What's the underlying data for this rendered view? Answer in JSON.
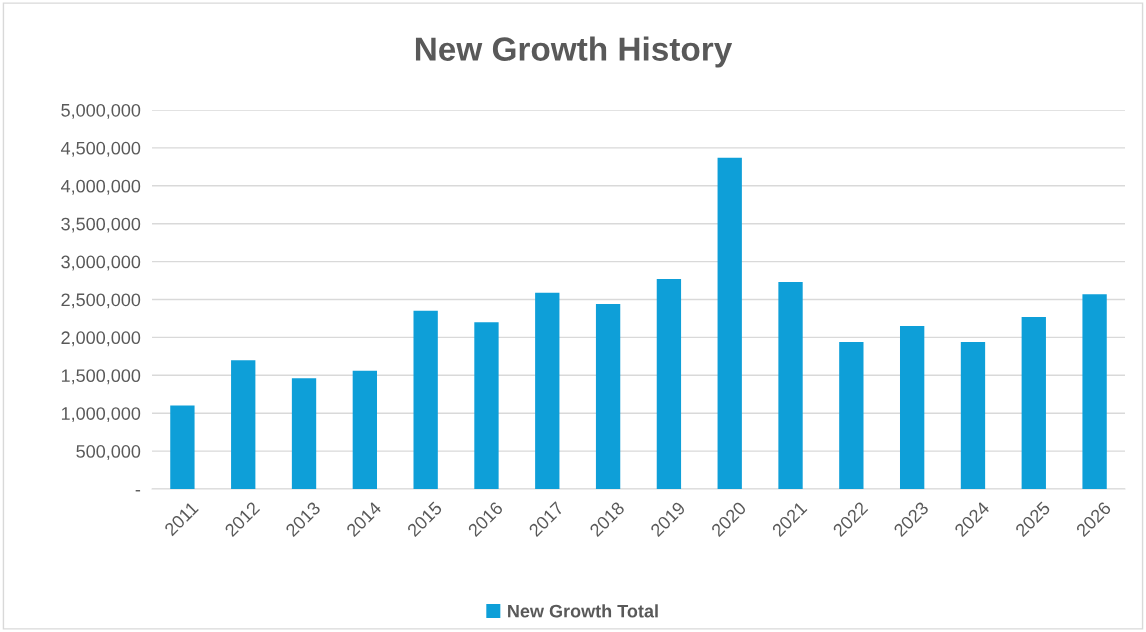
{
  "chart_data": {
    "type": "bar",
    "title": "New Growth History",
    "categories": [
      "2011",
      "2012",
      "2013",
      "2014",
      "2015",
      "2016",
      "2017",
      "2018",
      "2019",
      "2020",
      "2021",
      "2022",
      "2023",
      "2024",
      "2025",
      "2026"
    ],
    "series": [
      {
        "name": "New Growth Total",
        "color": "#0e9fd8",
        "values": [
          1100000,
          1700000,
          1460000,
          1560000,
          2350000,
          2200000,
          2590000,
          2440000,
          2770000,
          4370000,
          2730000,
          1940000,
          2150000,
          1940000,
          2270000,
          2570000
        ]
      }
    ],
    "ylim": [
      0,
      5000000
    ],
    "yticks": [
      {
        "value": 0,
        "label": "-"
      },
      {
        "value": 500000,
        "label": "500,000"
      },
      {
        "value": 1000000,
        "label": "1,000,000"
      },
      {
        "value": 1500000,
        "label": "1,500,000"
      },
      {
        "value": 2000000,
        "label": "2,000,000"
      },
      {
        "value": 2500000,
        "label": "2,500,000"
      },
      {
        "value": 3000000,
        "label": "3,000,000"
      },
      {
        "value": 3500000,
        "label": "3,500,000"
      },
      {
        "value": 4000000,
        "label": "4,000,000"
      },
      {
        "value": 4500000,
        "label": "4,500,000"
      },
      {
        "value": 5000000,
        "label": "5,000,000"
      }
    ],
    "grid": "y",
    "legend": "bottom"
  }
}
